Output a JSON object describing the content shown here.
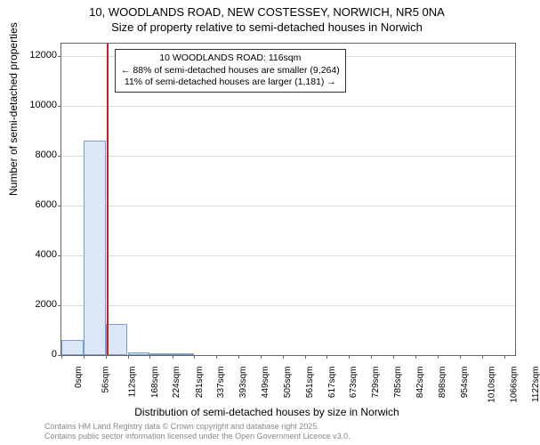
{
  "title_line1": "10, WOODLANDS ROAD, NEW COSTESSEY, NORWICH, NR5 0NA",
  "title_line2": "Size of property relative to semi-detached houses in Norwich",
  "y_axis_label": "Number of semi-detached properties",
  "x_axis_label": "Distribution of semi-detached houses by size in Norwich",
  "chart": {
    "type": "histogram",
    "background_color": "#ffffff",
    "grid_color": "#dddddd",
    "border_color": "#666666",
    "bar_fill": "#dbe7f5",
    "bar_border": "#7a9ec9",
    "marker_color": "#d01c1c",
    "marker_x": 116,
    "xlim": [
      0,
      1150
    ],
    "ylim": [
      0,
      12500
    ],
    "y_ticks": [
      0,
      2000,
      4000,
      6000,
      8000,
      10000,
      12000
    ],
    "x_ticks": [
      0,
      56,
      112,
      168,
      224,
      281,
      337,
      393,
      449,
      505,
      561,
      617,
      673,
      729,
      785,
      842,
      898,
      954,
      1010,
      1066,
      1122
    ],
    "x_tick_suffix": "sqm",
    "bars": [
      {
        "x0": 0,
        "x1": 56,
        "y": 600
      },
      {
        "x0": 56,
        "x1": 112,
        "y": 8600
      },
      {
        "x0": 112,
        "x1": 168,
        "y": 1250
      },
      {
        "x0": 168,
        "x1": 224,
        "y": 110
      },
      {
        "x0": 224,
        "x1": 281,
        "y": 35
      },
      {
        "x0": 281,
        "x1": 337,
        "y": 15
      }
    ],
    "title_fontsize": 13,
    "label_fontsize": 12,
    "tick_fontsize": 11
  },
  "annotation": {
    "line1": "10 WOODLANDS ROAD: 116sqm",
    "line2": "← 88% of semi-detached houses are smaller (9,264)",
    "line3": "11% of semi-detached houses are larger (1,181) →",
    "box_border": "#333333",
    "box_bg": "#ffffff",
    "fontsize": 10.5
  },
  "footer": {
    "line1": "Contains HM Land Registry data © Crown copyright and database right 2025.",
    "line2": "Contains public sector information licensed under the Open Government Licence v3.0.",
    "color": "#888888",
    "fontsize": 9
  }
}
